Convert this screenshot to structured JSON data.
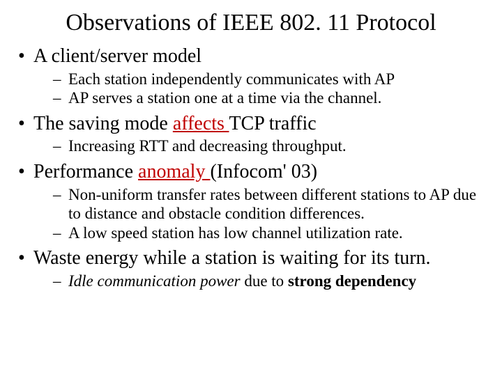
{
  "title": "Observations of IEEE 802. 11 Protocol",
  "b1": {
    "head": "A client/server model",
    "s1": "Each station independently communicates with AP",
    "s2": "AP serves a station one at a time via the channel."
  },
  "b2": {
    "head_pre": "The saving mode ",
    "head_link": "affects ",
    "head_post": "TCP traffic",
    "s1": "Increasing RTT and decreasing throughput."
  },
  "b3": {
    "head_pre": "Performance ",
    "head_link": "anomaly ",
    "head_post": "(Infocom' 03)",
    "s1": "Non-uniform transfer rates between different stations to AP due to distance and obstacle condition differences.",
    "s2": "A low speed station has low channel utilization rate."
  },
  "b4": {
    "head": "Waste energy while a station is waiting for its turn.",
    "s1_em": "Idle communication power",
    "s1_mid": " due to ",
    "s1_b": "strong dependency"
  }
}
